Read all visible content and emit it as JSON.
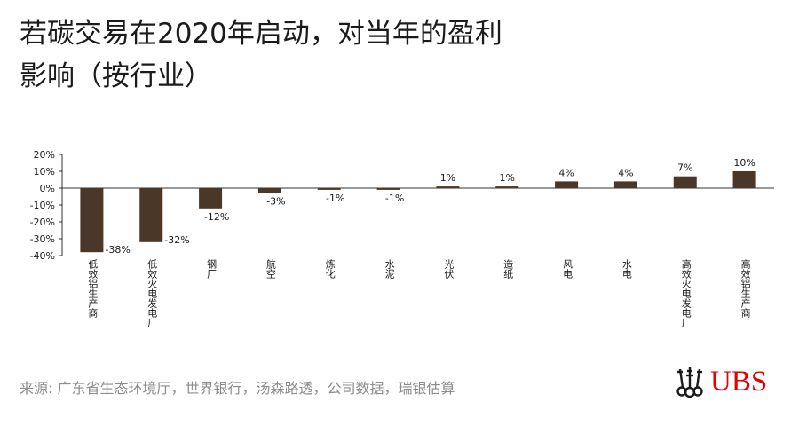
{
  "title_line1": "若碳交易在2020年启动，对当年的盈利",
  "title_line2": "影响（按行业）",
  "source": "来源: 广东省生态环境厅，世界银行，汤森路透，公司数据，瑞银估算",
  "logo_text": "UBS",
  "logo_icon": "ubs-keys-icon",
  "colors": {
    "bar": "#4a3728",
    "axis": "#333333",
    "brand": "#e60000"
  },
  "chart_data": {
    "type": "bar",
    "categories": [
      "低效铝生产商",
      "低效火电发电厂",
      "钢厂",
      "航空",
      "炼化",
      "水泥",
      "光伏",
      "造纸",
      "风电",
      "水电",
      "高效火电发电厂",
      "高效铝生产商"
    ],
    "values": [
      -38,
      -32,
      -12,
      -3,
      -1,
      -1,
      1,
      1,
      4,
      4,
      7,
      10
    ],
    "data_labels": [
      "-38%",
      "-32%",
      "-12%",
      "-3%",
      "-1%",
      "-1%",
      "1%",
      "1%",
      "4%",
      "4%",
      "7%",
      "10%"
    ],
    "ylim": [
      -40,
      20
    ],
    "yticks": [
      20,
      10,
      0,
      -10,
      -20,
      -30,
      -40
    ],
    "ytick_labels": [
      "20%",
      "10%",
      "0%",
      "-10%",
      "-20%",
      "-30%",
      "-40%"
    ],
    "xlabel": "",
    "ylabel": "",
    "grid": false,
    "legend": "none"
  }
}
